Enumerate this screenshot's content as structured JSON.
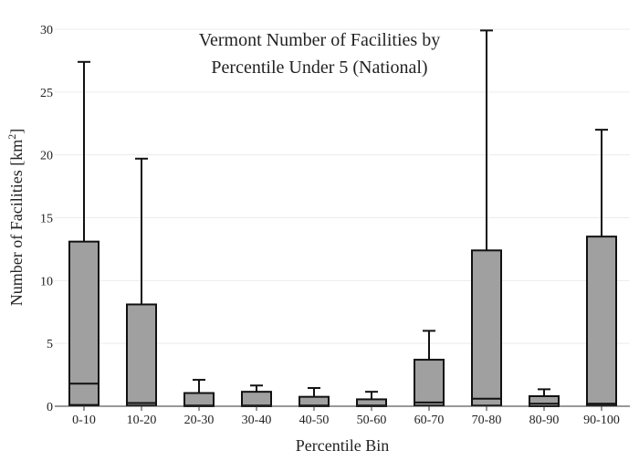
{
  "chart_data": {
    "type": "box",
    "title_lines": [
      "Vermont Number of Facilities by",
      "Percentile Under 5 (National)"
    ],
    "xlabel": "Percentile Bin",
    "ylabel_main": "Number of Facilities  [km",
    "ylabel_sup": "2",
    "ylabel_end": "]",
    "ylim": [
      0,
      30
    ],
    "yticks": [
      0,
      5,
      10,
      15,
      20,
      25,
      30
    ],
    "categories": [
      "0-10",
      "10-20",
      "20-30",
      "30-40",
      "40-50",
      "50-60",
      "60-70",
      "70-80",
      "80-90",
      "90-100"
    ],
    "boxes": [
      {
        "min": 0,
        "q1": 0.1,
        "median": 1.8,
        "q3": 13.1,
        "max": 27.4
      },
      {
        "min": 0,
        "q1": 0.05,
        "median": 0.25,
        "q3": 8.1,
        "max": 19.7
      },
      {
        "min": 0,
        "q1": 0,
        "median": 0.05,
        "q3": 1.05,
        "max": 2.1
      },
      {
        "min": 0,
        "q1": 0,
        "median": 0.05,
        "q3": 1.15,
        "max": 1.65
      },
      {
        "min": 0,
        "q1": 0,
        "median": 0.05,
        "q3": 0.75,
        "max": 1.45
      },
      {
        "min": 0,
        "q1": 0,
        "median": 0.05,
        "q3": 0.55,
        "max": 1.15
      },
      {
        "min": 0,
        "q1": 0.05,
        "median": 0.3,
        "q3": 3.7,
        "max": 6.0
      },
      {
        "min": 0,
        "q1": 0.05,
        "median": 0.6,
        "q3": 12.4,
        "max": 29.9
      },
      {
        "min": 0,
        "q1": 0,
        "median": 0.2,
        "q3": 0.8,
        "max": 1.35
      },
      {
        "min": 0,
        "q1": 0.05,
        "median": 0.2,
        "q3": 13.5,
        "max": 22.0
      }
    ],
    "box_color": "#a0a0a0",
    "line_color": "#111111",
    "grid": true
  }
}
